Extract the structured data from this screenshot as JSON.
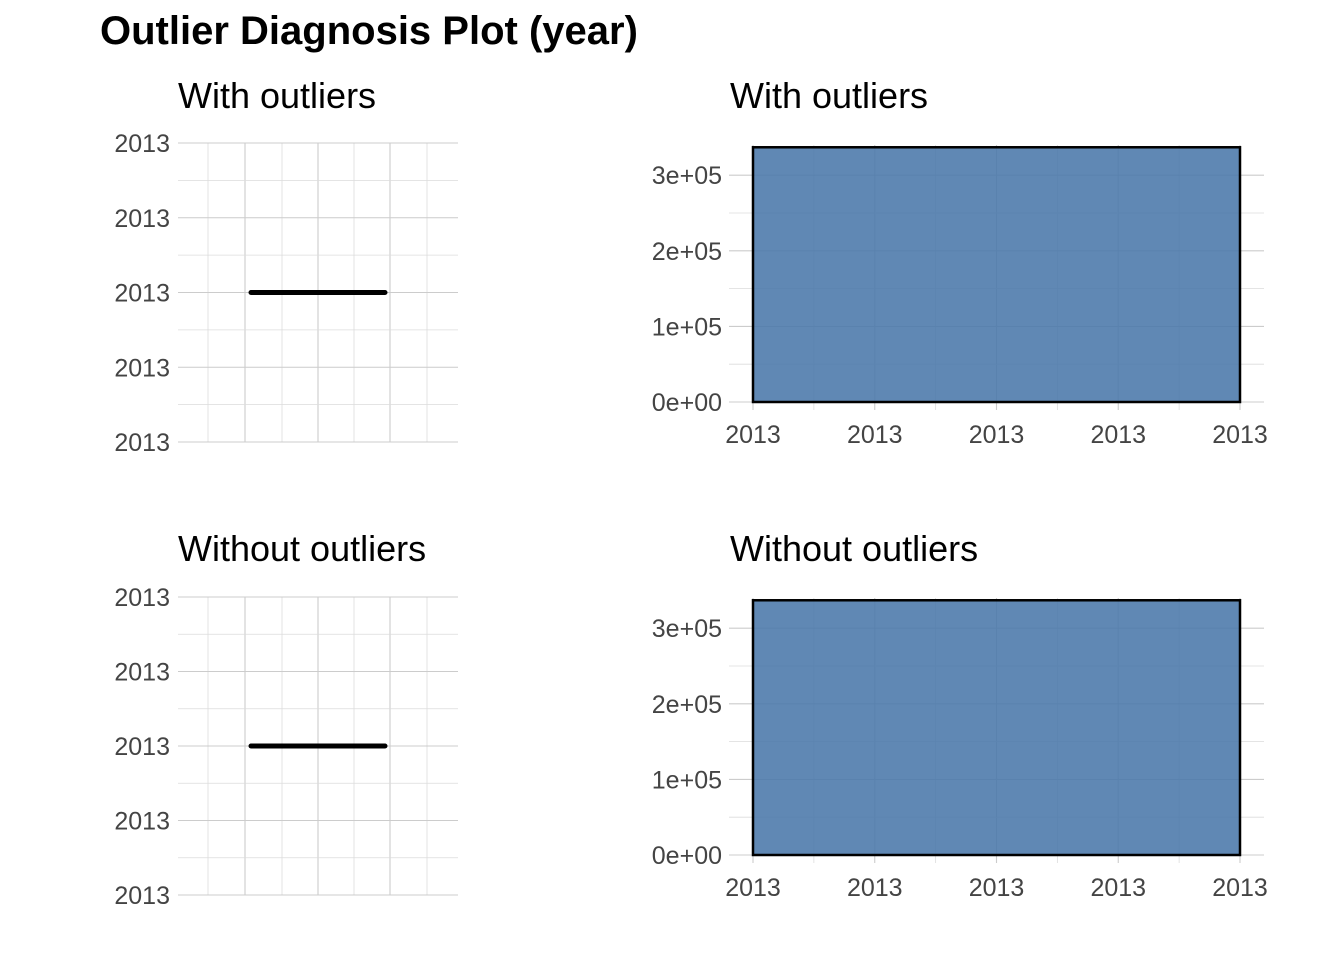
{
  "title": "Outlier Diagnosis Plot (year)",
  "colors": {
    "bar_fill": "#4a77aa",
    "line": "#000000",
    "grid": "#cccccc"
  },
  "chart_data": [
    {
      "type": "box",
      "subtitle": "With outliers",
      "y_tick_labels": [
        "2013",
        "2013",
        "2013",
        "2013",
        "2013"
      ],
      "median": 2013,
      "ylim": [
        2012.9,
        2013.1
      ]
    },
    {
      "type": "bar",
      "subtitle": "With outliers",
      "x_tick_labels": [
        "2013",
        "2013",
        "2013",
        "2013",
        "2013"
      ],
      "y_tick_labels": [
        "0e+00",
        "1e+05",
        "2e+05",
        "3e+05"
      ],
      "categories": [
        "2013"
      ],
      "values": [
        337000
      ],
      "ylim": [
        0,
        340000
      ]
    },
    {
      "type": "box",
      "subtitle": "Without outliers",
      "y_tick_labels": [
        "2013",
        "2013",
        "2013",
        "2013",
        "2013"
      ],
      "median": 2013,
      "ylim": [
        2012.9,
        2013.1
      ]
    },
    {
      "type": "bar",
      "subtitle": "Without outliers",
      "x_tick_labels": [
        "2013",
        "2013",
        "2013",
        "2013",
        "2013"
      ],
      "y_tick_labels": [
        "0e+00",
        "1e+05",
        "2e+05",
        "3e+05"
      ],
      "categories": [
        "2013"
      ],
      "values": [
        337000
      ],
      "ylim": [
        0,
        340000
      ]
    }
  ]
}
